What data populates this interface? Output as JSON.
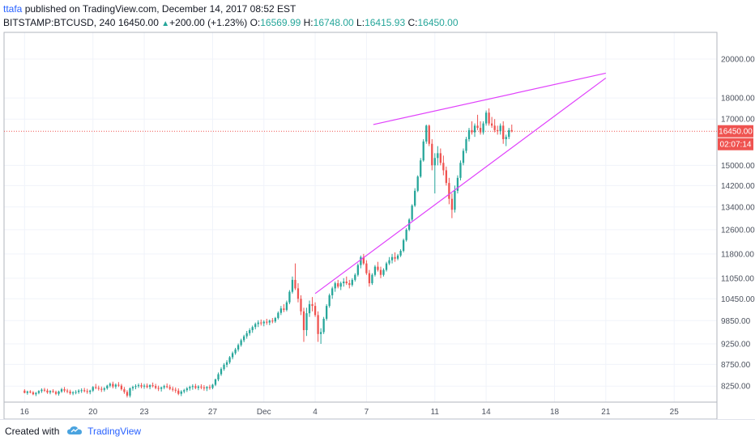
{
  "header": {
    "author": "ttafa",
    "published_text": "published on TradingView.com, December 14, 2017 08:52 EST",
    "symbol": "BITSTAMP:BTCUSD, 240",
    "last": "16450.00",
    "change": "+200.00 (+1.23%)",
    "o_label": "O:",
    "o_value": "16569.99",
    "h_label": "H:",
    "h_value": "16748.00",
    "l_label": "L:",
    "l_value": "16415.93",
    "c_label": "C:",
    "c_value": "16450.00"
  },
  "footer": {
    "created_with": "Created with",
    "brand": "TradingView"
  },
  "colors": {
    "up": "#26a69a",
    "down": "#ef5350",
    "trendline": "#e040fb",
    "price_line": "#ef5350",
    "grid": "#f0f3fa",
    "axis_text": "#4c525e"
  },
  "chart_data": {
    "type": "candlestick",
    "title": "",
    "xlabel": "",
    "ylabel": "",
    "grid": true,
    "y_scale": "log",
    "ylim": [
      7900,
      21500
    ],
    "y_ticks": [
      "20000.00",
      "18000.00",
      "17000.00",
      "15000.00",
      "14200.00",
      "13400.00",
      "12600.00",
      "11800.00",
      "11050.00",
      "10450.00",
      "9850.00",
      "9250.00",
      "8750.00",
      "8250.00"
    ],
    "x_ticks": [
      "16",
      "20",
      "23",
      "27",
      "Dec",
      "4",
      "7",
      "11",
      "14",
      "18",
      "21",
      "25"
    ],
    "x_tick_pos": [
      0,
      4,
      7,
      11,
      14,
      17,
      20,
      24,
      27,
      31,
      34,
      38
    ],
    "x_range_days": [
      -1.2,
      40.5
    ],
    "current_price": {
      "value": 16450,
      "label": "16450.00",
      "countdown": "02:07:14"
    },
    "candles_per_day": 6,
    "candles": [
      [
        8150,
        8180,
        8090,
        8100
      ],
      [
        8100,
        8150,
        8060,
        8130
      ],
      [
        8130,
        8160,
        8090,
        8110
      ],
      [
        8110,
        8140,
        8050,
        8070
      ],
      [
        8070,
        8120,
        8030,
        8100
      ],
      [
        8100,
        8160,
        8070,
        8140
      ],
      [
        8140,
        8200,
        8100,
        8170
      ],
      [
        8170,
        8210,
        8120,
        8150
      ],
      [
        8150,
        8190,
        8080,
        8110
      ],
      [
        8110,
        8160,
        8070,
        8140
      ],
      [
        8140,
        8180,
        8100,
        8120
      ],
      [
        8120,
        8150,
        8050,
        8080
      ],
      [
        8080,
        8150,
        8040,
        8130
      ],
      [
        8130,
        8210,
        8100,
        8180
      ],
      [
        8180,
        8230,
        8110,
        8150
      ],
      [
        8150,
        8190,
        8090,
        8130
      ],
      [
        8130,
        8170,
        8060,
        8090
      ],
      [
        8090,
        8140,
        8050,
        8110
      ],
      [
        8110,
        8160,
        8070,
        8120
      ],
      [
        8120,
        8180,
        8080,
        8150
      ],
      [
        8150,
        8200,
        8100,
        8160
      ],
      [
        8160,
        8210,
        8110,
        8140
      ],
      [
        8140,
        8190,
        8080,
        8120
      ],
      [
        8120,
        8170,
        8070,
        8150
      ],
      [
        8150,
        8250,
        8120,
        8230
      ],
      [
        8230,
        8300,
        8180,
        8210
      ],
      [
        8210,
        8260,
        8150,
        8190
      ],
      [
        8190,
        8240,
        8120,
        8170
      ],
      [
        8170,
        8230,
        8130,
        8200
      ],
      [
        8200,
        8280,
        8170,
        8260
      ],
      [
        8260,
        8330,
        8220,
        8300
      ],
      [
        8300,
        8350,
        8200,
        8240
      ],
      [
        8240,
        8310,
        8190,
        8280
      ],
      [
        8280,
        8340,
        8230,
        8260
      ],
      [
        8260,
        8300,
        8150,
        8180
      ],
      [
        8180,
        8230,
        8080,
        8120
      ],
      [
        8120,
        8160,
        8000,
        8040
      ],
      [
        8040,
        8220,
        8000,
        8200
      ],
      [
        8200,
        8260,
        8150,
        8230
      ],
      [
        8230,
        8290,
        8180,
        8250
      ],
      [
        8250,
        8310,
        8210,
        8270
      ],
      [
        8270,
        8320,
        8200,
        8240
      ],
      [
        8240,
        8300,
        8190,
        8260
      ],
      [
        8260,
        8310,
        8200,
        8230
      ],
      [
        8230,
        8290,
        8180,
        8270
      ],
      [
        8270,
        8330,
        8220,
        8250
      ],
      [
        8250,
        8300,
        8180,
        8210
      ],
      [
        8210,
        8260,
        8140,
        8190
      ],
      [
        8190,
        8240,
        8130,
        8220
      ],
      [
        8220,
        8280,
        8180,
        8250
      ],
      [
        8250,
        8310,
        8200,
        8230
      ],
      [
        8230,
        8280,
        8160,
        8190
      ],
      [
        8190,
        8240,
        8130,
        8170
      ],
      [
        8170,
        8220,
        8100,
        8150
      ],
      [
        8150,
        8200,
        8050,
        8080
      ],
      [
        8080,
        8160,
        8030,
        8130
      ],
      [
        8130,
        8190,
        8090,
        8160
      ],
      [
        8160,
        8230,
        8120,
        8200
      ],
      [
        8200,
        8260,
        8150,
        8230
      ],
      [
        8230,
        8290,
        8170,
        8250
      ],
      [
        8250,
        8300,
        8180,
        8210
      ],
      [
        8210,
        8270,
        8160,
        8240
      ],
      [
        8240,
        8290,
        8180,
        8220
      ],
      [
        8220,
        8270,
        8150,
        8200
      ],
      [
        8200,
        8250,
        8140,
        8230
      ],
      [
        8230,
        8280,
        8170,
        8210
      ],
      [
        8210,
        8300,
        8180,
        8280
      ],
      [
        8280,
        8420,
        8250,
        8400
      ],
      [
        8400,
        8560,
        8360,
        8520
      ],
      [
        8520,
        8680,
        8480,
        8640
      ],
      [
        8640,
        8780,
        8600,
        8740
      ],
      [
        8740,
        8850,
        8680,
        8800
      ],
      [
        8800,
        8950,
        8760,
        8920
      ],
      [
        8920,
        9060,
        8870,
        9020
      ],
      [
        9020,
        9150,
        8980,
        9110
      ],
      [
        9110,
        9260,
        9060,
        9220
      ],
      [
        9220,
        9380,
        9180,
        9340
      ],
      [
        9340,
        9480,
        9290,
        9440
      ],
      [
        9440,
        9580,
        9380,
        9520
      ],
      [
        9520,
        9650,
        9460,
        9600
      ],
      [
        9600,
        9720,
        9530,
        9680
      ],
      [
        9680,
        9800,
        9620,
        9760
      ],
      [
        9760,
        9860,
        9680,
        9800
      ],
      [
        9800,
        9880,
        9720,
        9780
      ],
      [
        9780,
        9860,
        9700,
        9820
      ],
      [
        9820,
        9900,
        9740,
        9800
      ],
      [
        9800,
        9880,
        9730,
        9850
      ],
      [
        9850,
        9920,
        9780,
        9830
      ],
      [
        9830,
        9950,
        9790,
        9920
      ],
      [
        9920,
        10100,
        9880,
        10060
      ],
      [
        10060,
        10250,
        10000,
        10180
      ],
      [
        10180,
        10300,
        10080,
        10140
      ],
      [
        10140,
        10400,
        10100,
        10350
      ],
      [
        10350,
        10700,
        10300,
        10650
      ],
      [
        10650,
        11100,
        10600,
        11000
      ],
      [
        11000,
        11500,
        10700,
        10750
      ],
      [
        10750,
        10900,
        10350,
        10450
      ],
      [
        10450,
        10550,
        10000,
        10100
      ],
      [
        10100,
        10200,
        9300,
        9600
      ],
      [
        9600,
        10200,
        9450,
        10050
      ],
      [
        10050,
        10400,
        9950,
        10300
      ],
      [
        10300,
        10500,
        10100,
        10250
      ],
      [
        10250,
        10350,
        9950,
        10000
      ],
      [
        10000,
        10100,
        9300,
        9500
      ],
      [
        9500,
        9650,
        9250,
        9550
      ],
      [
        9550,
        9950,
        9500,
        9900
      ],
      [
        9900,
        10300,
        9850,
        10250
      ],
      [
        10250,
        10600,
        10200,
        10550
      ],
      [
        10550,
        10800,
        10450,
        10750
      ],
      [
        10750,
        10950,
        10650,
        10900
      ],
      [
        10900,
        11000,
        10750,
        10800
      ],
      [
        10800,
        10950,
        10700,
        10900
      ],
      [
        10900,
        11050,
        10800,
        10950
      ],
      [
        10950,
        11100,
        10850,
        10900
      ],
      [
        10900,
        11000,
        10750,
        10850
      ],
      [
        10850,
        11050,
        10800,
        11000
      ],
      [
        11000,
        11200,
        10950,
        11150
      ],
      [
        11150,
        11500,
        11100,
        11450
      ],
      [
        11450,
        11750,
        11350,
        11700
      ],
      [
        11700,
        11800,
        11450,
        11500
      ],
      [
        11500,
        11600,
        11150,
        11200
      ],
      [
        11200,
        11300,
        10800,
        10900
      ],
      [
        10900,
        11200,
        10850,
        11150
      ],
      [
        11150,
        11450,
        11100,
        11400
      ],
      [
        11400,
        11550,
        11250,
        11300
      ],
      [
        11300,
        11400,
        11050,
        11150
      ],
      [
        11150,
        11350,
        11100,
        11300
      ],
      [
        11300,
        11550,
        11250,
        11500
      ],
      [
        11500,
        11700,
        11450,
        11600
      ],
      [
        11600,
        11800,
        11500,
        11700
      ],
      [
        11700,
        11850,
        11550,
        11650
      ],
      [
        11650,
        11800,
        11600,
        11750
      ],
      [
        11750,
        11950,
        11700,
        11900
      ],
      [
        11900,
        12300,
        11850,
        12250
      ],
      [
        12250,
        12650,
        12200,
        12600
      ],
      [
        12600,
        13000,
        12550,
        12950
      ],
      [
        12950,
        13500,
        12900,
        13450
      ],
      [
        13450,
        14100,
        13400,
        14000
      ],
      [
        14000,
        14600,
        13950,
        14550
      ],
      [
        14550,
        15300,
        14500,
        15200
      ],
      [
        15200,
        16100,
        15150,
        16000
      ],
      [
        16000,
        16748,
        15900,
        16700
      ],
      [
        16700,
        16750,
        15800,
        15900
      ],
      [
        15900,
        16100,
        14800,
        15000
      ],
      [
        15000,
        15500,
        13900,
        15300
      ],
      [
        15300,
        15800,
        15000,
        15500
      ],
      [
        15500,
        15700,
        15000,
        15100
      ],
      [
        15100,
        15400,
        14600,
        14800
      ],
      [
        14800,
        14950,
        14200,
        14300
      ],
      [
        14300,
        14500,
        13500,
        13700
      ],
      [
        13700,
        13900,
        13000,
        13300
      ],
      [
        13300,
        14200,
        13200,
        14000
      ],
      [
        14000,
        14600,
        13900,
        14500
      ],
      [
        14500,
        15200,
        14400,
        15100
      ],
      [
        15100,
        15700,
        15000,
        15600
      ],
      [
        15600,
        16200,
        15500,
        16100
      ],
      [
        16100,
        16600,
        16000,
        16500
      ],
      [
        16500,
        16900,
        16300,
        16400
      ],
      [
        16400,
        16800,
        16200,
        16700
      ],
      [
        16700,
        17200,
        16500,
        16600
      ],
      [
        16600,
        16900,
        16300,
        16400
      ],
      [
        16400,
        16900,
        16300,
        16800
      ],
      [
        16800,
        17400,
        16700,
        17300
      ],
      [
        17300,
        17500,
        16700,
        16800
      ],
      [
        16800,
        17100,
        16600,
        16700
      ],
      [
        16700,
        17000,
        16400,
        16500
      ],
      [
        16500,
        16700,
        16300,
        16450
      ],
      [
        16450,
        16800,
        16300,
        16700
      ],
      [
        16700,
        16900,
        15900,
        16100
      ],
      [
        16100,
        16300,
        15800,
        16200
      ],
      [
        16200,
        16600,
        16100,
        16500
      ],
      [
        16500,
        16750,
        16400,
        16450
      ]
    ],
    "trendlines": [
      {
        "name": "upper",
        "from": [
          20.4,
          16750
        ],
        "to": [
          34.0,
          19250
        ]
      },
      {
        "name": "lower",
        "from": [
          17.0,
          10600
        ],
        "to": [
          34.0,
          19000
        ]
      }
    ]
  }
}
